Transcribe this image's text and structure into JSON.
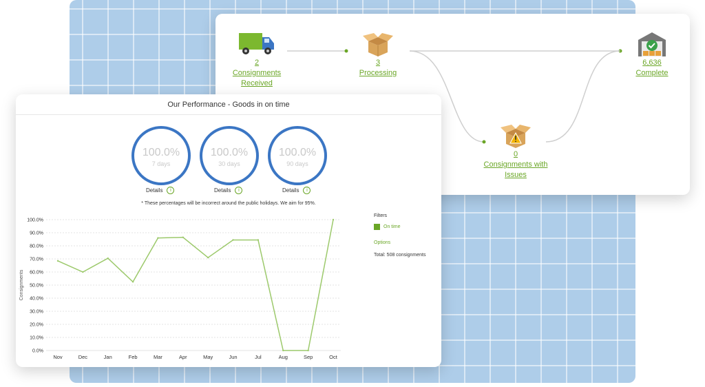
{
  "flow": {
    "received": {
      "count": "2",
      "label_line1": "Consignments",
      "label_line2": "Received"
    },
    "processing": {
      "count": "3",
      "label": "Processing"
    },
    "complete": {
      "count": "6,636",
      "label": "Complete"
    },
    "issues": {
      "count": "0",
      "label_line1": "Consignments with",
      "label_line2": "Issues"
    }
  },
  "performance": {
    "title": "Our Performance - Goods in on time",
    "gauges": [
      {
        "percent": "100.0%",
        "period": "7 days",
        "details": "Details"
      },
      {
        "percent": "100.0%",
        "period": "30 days",
        "details": "Details"
      },
      {
        "percent": "100.0%",
        "period": "90 days",
        "details": "Details"
      }
    ],
    "note": "* These percentages will be incorrect around the public holidays. We aim for 95%.",
    "filters_title": "Filters",
    "legend_label": "On time",
    "options_label": "Options",
    "total": "Total: 508 consignments"
  },
  "colors": {
    "accent_green": "#6aa626",
    "gauge_blue": "#3b76c4",
    "line_green": "#9cc96b"
  },
  "icons": {
    "received": "delivery-truck-icon",
    "processing": "open-box-icon",
    "complete": "warehouse-check-icon",
    "issues": "box-warning-icon"
  },
  "chart_data": {
    "type": "line",
    "categories": [
      "Nov",
      "Dec",
      "Jan",
      "Feb",
      "Mar",
      "Apr",
      "May",
      "Jun",
      "Jul",
      "Aug",
      "Sep",
      "Oct"
    ],
    "series": [
      {
        "name": "On time",
        "values": [
          68.5,
          60,
          70.5,
          52.5,
          86,
          86.5,
          71,
          84.5,
          84.5,
          0,
          0,
          100
        ]
      }
    ],
    "ylabel": "Consignments",
    "ylim": [
      0,
      100
    ],
    "yticks": [
      "0.0%",
      "10.0%",
      "20.0%",
      "30.0%",
      "40.0%",
      "50.0%",
      "60.0%",
      "70.0%",
      "80.0%",
      "90.0%",
      "100.0%"
    ],
    "grid": true
  }
}
